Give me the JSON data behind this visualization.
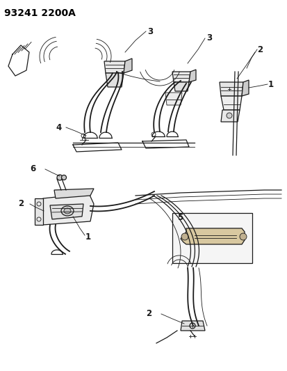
{
  "title": "93241 2200A",
  "background_color": "#ffffff",
  "line_color": "#1a1a1a",
  "label_color": "#000000",
  "title_fontsize": 10,
  "label_fontsize": 8.5,
  "fig_width": 4.14,
  "fig_height": 5.33,
  "dpi": 100
}
